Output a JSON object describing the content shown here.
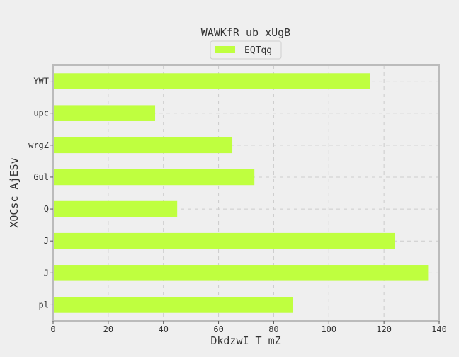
{
  "chart_data": {
    "type": "bar",
    "orientation": "horizontal",
    "title": "WAWKfR ub xUgB",
    "xlabel": "DkdzwI  T mZ",
    "ylabel": "XOCsc AjESv",
    "categories": [
      "YWT",
      "upc",
      "wrgZ",
      "Gul",
      "Q",
      "J",
      "J",
      "pl"
    ],
    "series": [
      {
        "name": "EQTqg",
        "values": [
          115,
          37,
          65,
          73,
          45,
          124,
          136,
          87
        ]
      }
    ],
    "xlim": [
      0,
      140
    ],
    "xticks": [
      "0",
      "20",
      "40",
      "60",
      "80",
      "100",
      "120",
      "140"
    ],
    "grid": true,
    "legend_position": "top-center",
    "colors": {
      "bar": "#bfff3f",
      "background": "#efefef",
      "frame": "#bbbbbb",
      "grid": "#cccccc",
      "text": "#333333"
    }
  }
}
